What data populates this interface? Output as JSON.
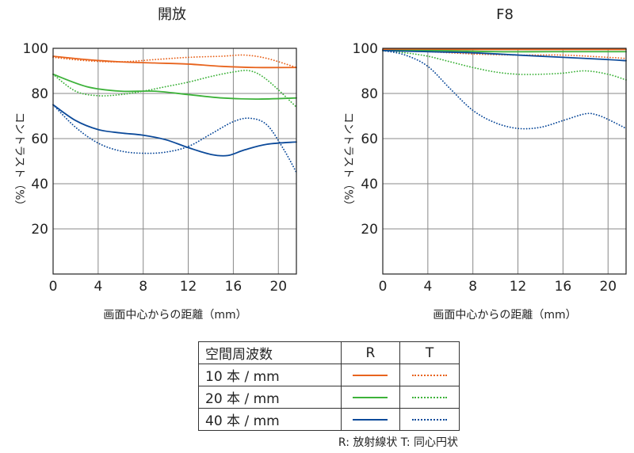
{
  "chart_data": [
    {
      "type": "line",
      "title": "開放",
      "xlabel": "画面中心からの距離（mm）",
      "ylabel": "コントラスト（%）",
      "xlim": [
        0,
        21.6
      ],
      "ylim": [
        0,
        100
      ],
      "xticks": [
        "0",
        "4",
        "8",
        "12",
        "16",
        "20"
      ],
      "yticks": [
        "20",
        "40",
        "60",
        "80",
        "100"
      ],
      "grid": true,
      "series": [
        {
          "key": "10R",
          "x": [
            0,
            3,
            6,
            9,
            12,
            15,
            18,
            21.6
          ],
          "values": [
            96.5,
            95,
            94,
            93.5,
            93,
            92,
            91.5,
            91.5
          ]
        },
        {
          "key": "10T",
          "x": [
            0,
            3,
            6,
            9,
            12,
            15,
            17,
            19,
            21.6
          ],
          "values": [
            96,
            94.5,
            94,
            95,
            96,
            96.5,
            97,
            95.5,
            91.5
          ]
        },
        {
          "key": "20R",
          "x": [
            0,
            3,
            6,
            9,
            12,
            15,
            18,
            21.6
          ],
          "values": [
            88.5,
            83,
            81,
            81,
            79.5,
            78,
            77.5,
            78
          ]
        },
        {
          "key": "20T",
          "x": [
            0,
            2,
            4,
            6,
            8,
            10,
            12,
            14,
            16,
            17.5,
            19,
            21.6
          ],
          "values": [
            88.5,
            81,
            79,
            79.5,
            81,
            83,
            85,
            87.5,
            89.5,
            90,
            86,
            74
          ]
        },
        {
          "key": "40R",
          "x": [
            0,
            2,
            4,
            6,
            8,
            10,
            12,
            14,
            15.5,
            17,
            19,
            21.6
          ],
          "values": [
            75,
            68,
            64,
            62.5,
            61.5,
            59.5,
            56,
            53,
            52.5,
            55,
            57.5,
            58.5
          ]
        },
        {
          "key": "40T",
          "x": [
            0,
            2,
            4,
            6,
            8,
            10,
            12,
            14,
            16,
            17.5,
            19,
            20.5,
            21.6
          ],
          "values": [
            75,
            65,
            58,
            54.5,
            53.5,
            54,
            56.5,
            62,
            67.5,
            69,
            66,
            55,
            45
          ]
        }
      ]
    },
    {
      "type": "line",
      "title": "F8",
      "xlabel": "画面中心からの距離（mm）",
      "ylabel": "コントラスト（%）",
      "xlim": [
        0,
        21.6
      ],
      "ylim": [
        0,
        100
      ],
      "xticks": [
        "0",
        "4",
        "8",
        "12",
        "16",
        "20"
      ],
      "yticks": [
        "20",
        "40",
        "60",
        "80",
        "100"
      ],
      "grid": true,
      "series": [
        {
          "key": "10R",
          "x": [
            0,
            5,
            10,
            15,
            21.6
          ],
          "values": [
            99.5,
            99.5,
            99.5,
            99.5,
            99.5
          ]
        },
        {
          "key": "10T",
          "x": [
            0,
            4,
            8,
            12,
            16,
            20,
            21.6
          ],
          "values": [
            99,
            98.5,
            97.5,
            97,
            97,
            96,
            95.5
          ]
        },
        {
          "key": "20R",
          "x": [
            0,
            5,
            10,
            15,
            21.6
          ],
          "values": [
            99,
            99,
            98.5,
            98.5,
            98.5
          ]
        },
        {
          "key": "20T",
          "x": [
            0,
            2,
            4,
            6,
            8,
            10,
            12,
            14,
            16,
            18,
            20,
            21.6
          ],
          "values": [
            99,
            98,
            96.5,
            94,
            91.5,
            89.5,
            88.5,
            88.5,
            89,
            90,
            88.5,
            86
          ]
        },
        {
          "key": "40R",
          "x": [
            0,
            4,
            8,
            12,
            16,
            20,
            21.6
          ],
          "values": [
            99,
            98.5,
            98,
            97,
            96,
            95,
            94.5
          ]
        },
        {
          "key": "40T",
          "x": [
            0,
            2,
            4,
            6,
            8,
            10,
            12,
            14,
            16,
            18,
            19,
            20,
            21.6
          ],
          "values": [
            99,
            97,
            92,
            82,
            72.5,
            67,
            64.5,
            65,
            68,
            71,
            70.5,
            68.5,
            64.5
          ]
        }
      ]
    }
  ],
  "legend": {
    "header": {
      "freq": "空間周波数",
      "r": "R",
      "t": "T"
    },
    "rows": [
      {
        "label": "10 本 / mm",
        "color": "#E8641E"
      },
      {
        "label": "20 本 / mm",
        "color": "#3DB23A"
      },
      {
        "label": "40 本 / mm",
        "color": "#0C4A9A"
      }
    ]
  },
  "note": "R: 放射線状  T: 同心円状",
  "colors": {
    "10": "#E8641E",
    "20": "#3DB23A",
    "40": "#0C4A9A",
    "grid": "#888888",
    "frame": "#222222"
  }
}
